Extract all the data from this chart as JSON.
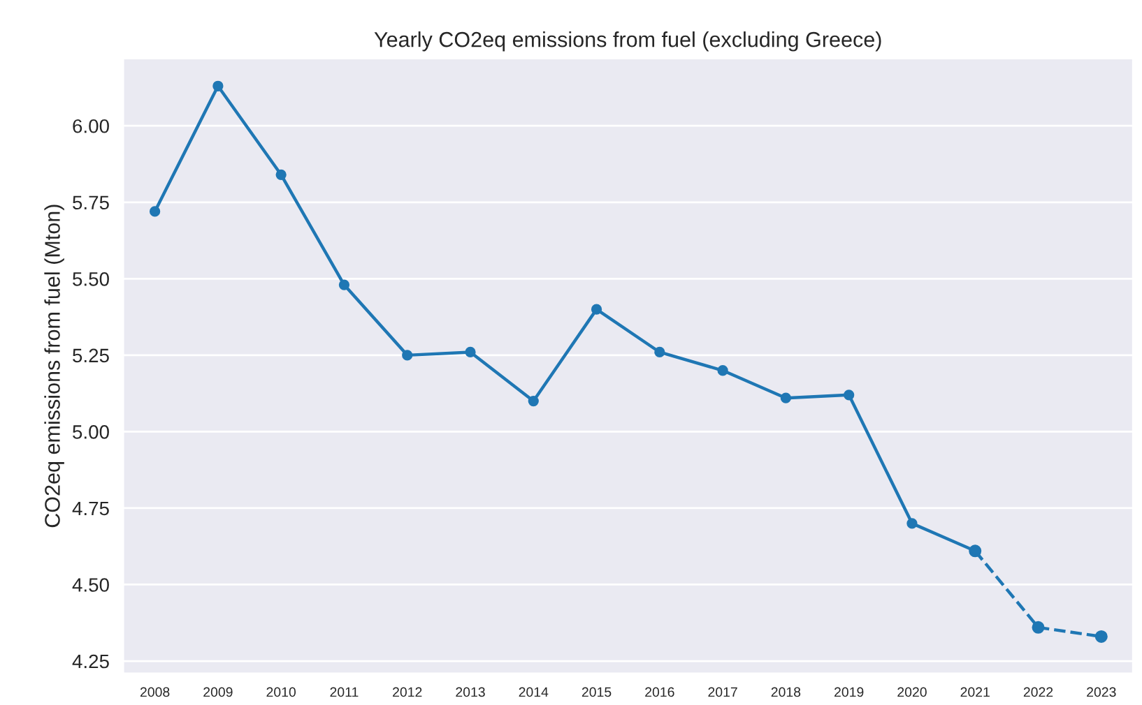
{
  "chart_data": {
    "type": "line",
    "title": "Yearly CO2eq emissions from fuel (excluding Greece)",
    "ylabel": "CO2eq emissions from fuel (Mton)",
    "categories": [
      "2008",
      "2009",
      "2010",
      "2011",
      "2012",
      "2013",
      "2014",
      "2015",
      "2016",
      "2017",
      "2018",
      "2019",
      "2020",
      "2021",
      "2022",
      "2023"
    ],
    "series": [
      {
        "color": "#1f77b4",
        "line_style": "solid",
        "values": [
          5.72,
          6.13,
          5.84,
          5.48,
          5.25,
          5.26,
          5.1,
          5.4,
          5.26,
          5.2,
          5.11,
          5.12,
          4.7,
          4.61,
          null,
          null
        ]
      },
      {
        "color": "#1f77b4",
        "line_style": "dashed",
        "values": [
          null,
          null,
          null,
          null,
          null,
          null,
          null,
          null,
          null,
          null,
          null,
          null,
          null,
          4.61,
          4.36,
          4.33
        ]
      }
    ],
    "ylim": [
      4.21,
      6.22
    ],
    "yticks": [
      4.25,
      {
        "value": 4.5,
        "label": "4.50"
      },
      4.75,
      {
        "value": 5,
        "label": "5.00"
      },
      5.25,
      {
        "value": 5.5,
        "label": "5.50"
      },
      5.75,
      {
        "value": 6,
        "label": "6.00"
      }
    ],
    "grid": "y",
    "marker": "circle",
    "legend": false
  }
}
